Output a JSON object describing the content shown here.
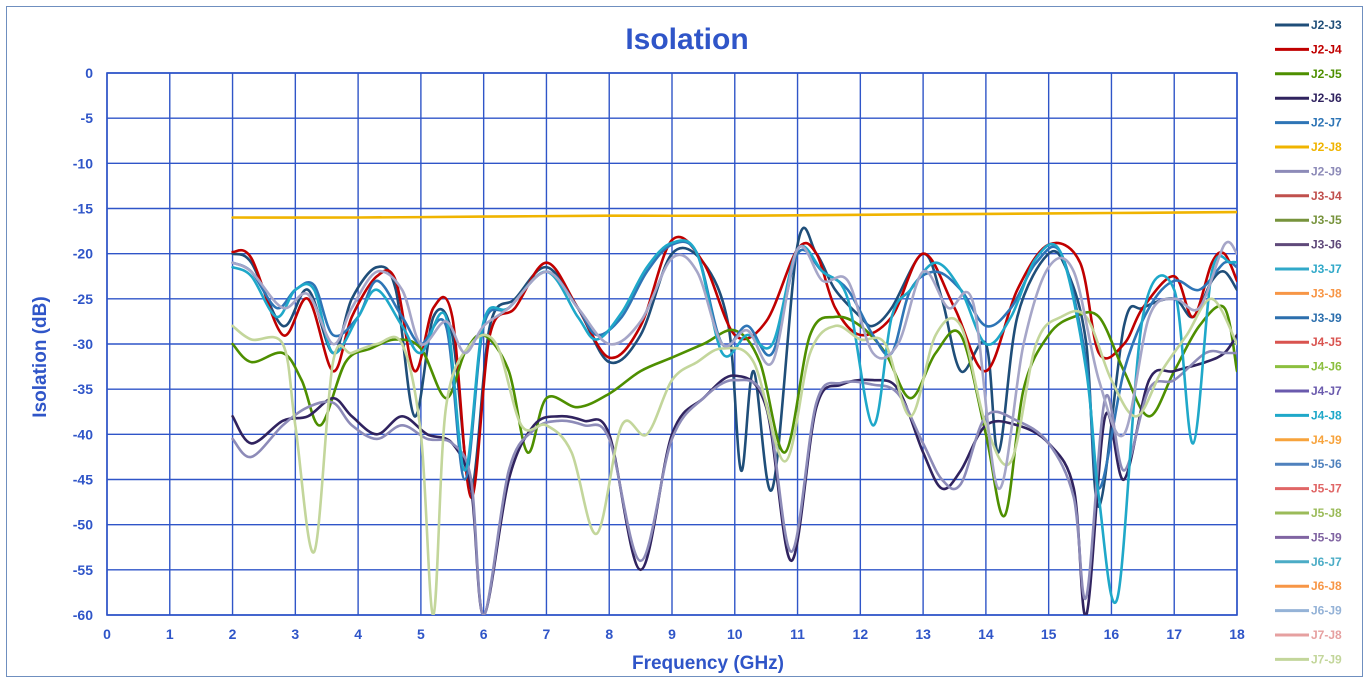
{
  "colors": {
    "title": "#2f55c8",
    "grid": "#2f55c8",
    "axis_text": "#2f55c8",
    "background": "#ffffff"
  },
  "chart_data": {
    "type": "line",
    "title": "Isolation",
    "xlabel": "Frequency (GHz)",
    "ylabel": "Isolation (dB)",
    "xlim": [
      0,
      18
    ],
    "ylim": [
      -60,
      0
    ],
    "x_ticks": [
      "0",
      "1",
      "2",
      "3",
      "4",
      "5",
      "6",
      "7",
      "8",
      "9",
      "10",
      "11",
      "12",
      "13",
      "14",
      "15",
      "16",
      "17",
      "18"
    ],
    "y_ticks": [
      "0",
      "-5",
      "-10",
      "-15",
      "-20",
      "-25",
      "-30",
      "-35",
      "-40",
      "-45",
      "-50",
      "-55",
      "-60"
    ],
    "grid": true,
    "legend_position": "right",
    "series": [
      {
        "name": "J2-J3",
        "color": "#1f4e79",
        "x": [
          2,
          2.3,
          2.8,
          3.2,
          3.6,
          3.9,
          4.3,
          4.6,
          4.9,
          5.2,
          5.5,
          5.8,
          6.1,
          6.5,
          7,
          7.5,
          8,
          8.5,
          9,
          9.5,
          9.9,
          10.1,
          10.3,
          10.6,
          11,
          11.3,
          11.6,
          12,
          12.2,
          12.5,
          13,
          13.3,
          13.6,
          14,
          14.2,
          14.5,
          15,
          15.3,
          15.6,
          15.8,
          16.2,
          16.5,
          17,
          17.3,
          17.6,
          17.8,
          18
        ],
        "y": [
          -20,
          -21,
          -28,
          -24,
          -31,
          -25,
          -21.5,
          -24,
          -38,
          -27,
          -29,
          -46,
          -28,
          -25,
          -21.5,
          -26,
          -32,
          -29,
          -20,
          -21,
          -28,
          -44,
          -33,
          -46,
          -19,
          -20,
          -24,
          -27,
          -28,
          -26,
          -20,
          -25,
          -33,
          -30,
          -42,
          -27,
          -20,
          -22,
          -30,
          -48,
          -28,
          -26,
          -25,
          -27,
          -23,
          -22,
          -24
        ]
      },
      {
        "name": "J2-J4",
        "color": "#c00000",
        "x": [
          2,
          2.3,
          2.8,
          3.2,
          3.6,
          3.9,
          4.3,
          4.6,
          4.9,
          5.2,
          5.5,
          5.8,
          6.1,
          6.5,
          7,
          7.5,
          8,
          8.5,
          9,
          9.5,
          10,
          10.5,
          11,
          11.3,
          11.6,
          12,
          12.5,
          13,
          13.5,
          14,
          14.5,
          15,
          15.5,
          15.8,
          16.2,
          16.5,
          17,
          17.3,
          17.6,
          17.8,
          18
        ],
        "y": [
          -19.8,
          -20.5,
          -29,
          -25,
          -33,
          -27,
          -22.5,
          -23,
          -33,
          -26,
          -27,
          -47,
          -29,
          -26,
          -21,
          -26,
          -31.5,
          -28,
          -18.5,
          -21,
          -29,
          -27.5,
          -19.5,
          -20,
          -26,
          -29,
          -27,
          -20,
          -26,
          -33,
          -24,
          -19,
          -21,
          -31,
          -30,
          -26,
          -22.5,
          -27,
          -21,
          -20,
          -23
        ]
      },
      {
        "name": "J2-J5",
        "color": "#4e8f00",
        "x": [
          2,
          2.3,
          2.8,
          3.1,
          3.4,
          3.8,
          4.2,
          4.6,
          5.0,
          5.4,
          5.7,
          6.0,
          6.4,
          6.7,
          7.0,
          7.5,
          8,
          8.5,
          9,
          9.5,
          10,
          10.4,
          10.8,
          11.2,
          11.6,
          12,
          12.4,
          12.8,
          13.2,
          13.6,
          14,
          14.3,
          14.6,
          15,
          15.4,
          15.8,
          16.2,
          16.6,
          17,
          17.4,
          17.8,
          18
        ],
        "y": [
          -30,
          -32,
          -31,
          -34,
          -39,
          -32,
          -30.5,
          -29.5,
          -30.5,
          -36,
          -31,
          -29,
          -33,
          -42,
          -36,
          -37,
          -35.5,
          -33,
          -31.5,
          -30,
          -28.5,
          -32,
          -42,
          -29,
          -27,
          -28,
          -31,
          -36,
          -31,
          -29,
          -40,
          -49,
          -35,
          -29,
          -27,
          -27,
          -33,
          -38,
          -33,
          -28,
          -26,
          -33
        ]
      },
      {
        "name": "J2-J6",
        "color": "#30235f",
        "x": [
          2,
          2.3,
          2.8,
          3.2,
          3.6,
          3.9,
          4.3,
          4.7,
          5.1,
          5.5,
          5.8,
          6.0,
          6.4,
          6.8,
          7.2,
          7.6,
          8.0,
          8.5,
          9.0,
          9.5,
          10.0,
          10.5,
          10.9,
          11.3,
          11.7,
          12.2,
          12.6,
          13.0,
          13.3,
          13.6,
          14.0,
          14.5,
          15.0,
          15.4,
          15.6,
          15.9,
          16.2,
          16.6,
          17.0,
          17.5,
          17.8,
          18
        ],
        "y": [
          -38,
          -41,
          -38.5,
          -38,
          -36,
          -38,
          -40,
          -38,
          -40,
          -41,
          -46,
          -60,
          -45,
          -39,
          -38,
          -38.5,
          -40,
          -55,
          -40,
          -36,
          -33.5,
          -37,
          -54,
          -37,
          -34.5,
          -34,
          -35,
          -42,
          -46,
          -44,
          -39,
          -39,
          -41,
          -46,
          -60,
          -38,
          -45,
          -34,
          -33,
          -32,
          -31,
          -29
        ]
      },
      {
        "name": "J2-J7",
        "color": "#2e75b6",
        "x": [
          2,
          2.3,
          2.7,
          3.0,
          3.3,
          3.6,
          4.0,
          4.3,
          4.7,
          5.0,
          5.4,
          5.7,
          6.0,
          6.4,
          7.0,
          7.5,
          7.8,
          8.2,
          8.6,
          9.0,
          9.4,
          9.8,
          10.2,
          10.6,
          11.0,
          11.4,
          11.8,
          12.2,
          12.5,
          12.8,
          13.2,
          13.6,
          14.0,
          14.4,
          14.8,
          15.2,
          15.6,
          15.8,
          16.2,
          16.6,
          17.0,
          17.4,
          17.8,
          18
        ],
        "y": [
          -21,
          -22,
          -26,
          -24,
          -23.5,
          -29,
          -27,
          -23,
          -27,
          -30,
          -28,
          -45,
          -28,
          -26,
          -22,
          -26,
          -29,
          -27,
          -22,
          -19,
          -20,
          -30,
          -28,
          -31,
          -20,
          -22,
          -24,
          -29,
          -31,
          -24,
          -22,
          -24,
          -28,
          -26,
          -21,
          -20,
          -32,
          -46,
          -33,
          -26,
          -23,
          -24,
          -21,
          -21.5
        ]
      },
      {
        "name": "J2-J8",
        "color": "#f0b400",
        "x": [
          2,
          4,
          6,
          8,
          10,
          12,
          14,
          16,
          18
        ],
        "y": [
          -16,
          -16,
          -15.9,
          -15.8,
          -15.8,
          -15.7,
          -15.6,
          -15.5,
          -15.4
        ]
      },
      {
        "name": "J2-J9",
        "color": "#8d8bb8",
        "x": [
          2,
          2.3,
          2.8,
          3.2,
          3.6,
          3.9,
          4.3,
          4.7,
          5.1,
          5.5,
          5.8,
          6.0,
          6.4,
          6.8,
          7.2,
          7.6,
          8.0,
          8.5,
          9.0,
          9.5,
          10.0,
          10.5,
          10.9,
          11.3,
          11.7,
          12.2,
          12.6,
          13.0,
          13.3,
          13.6,
          14.0,
          14.5,
          15.0,
          15.4,
          15.6,
          15.9,
          16.2,
          16.6,
          17.0,
          17.5,
          17.8,
          18
        ],
        "y": [
          -40.5,
          -42.5,
          -39,
          -37,
          -36.5,
          -39,
          -40.5,
          -39,
          -40.5,
          -41,
          -45,
          -60,
          -44,
          -39.5,
          -38.5,
          -39,
          -40.5,
          -54,
          -40.5,
          -36,
          -34,
          -36.5,
          -53,
          -36.5,
          -34.3,
          -34.5,
          -35.5,
          -41,
          -45,
          -45.5,
          -38,
          -38.5,
          -41,
          -47,
          -58,
          -36,
          -44,
          -35,
          -34,
          -31,
          -31,
          -31
        ]
      },
      {
        "name": "J3-J4",
        "color": "#c0504d",
        "x": [
          2,
          18
        ],
        "y": [
          -30,
          -30
        ],
        "hidden": true
      },
      {
        "name": "J3-J5",
        "color": "#77933c",
        "x": [
          2,
          18
        ],
        "y": [
          -30,
          -30
        ],
        "hidden": true
      },
      {
        "name": "J3-J6",
        "color": "#5f497a",
        "x": [
          2,
          18
        ],
        "y": [
          -30,
          -30
        ],
        "hidden": true
      },
      {
        "name": "J3-J7",
        "color": "#31a9c9",
        "x": [
          2,
          18
        ],
        "y": [
          -30,
          -30
        ],
        "hidden": true
      },
      {
        "name": "J3-J8",
        "color": "#f79646",
        "x": [
          2,
          18
        ],
        "y": [
          -30,
          -30
        ],
        "hidden": true
      },
      {
        "name": "J3-J9",
        "color": "#2c6fad",
        "x": [
          2,
          18
        ],
        "y": [
          -30,
          -30
        ],
        "hidden": true
      },
      {
        "name": "J4-J5",
        "color": "#d9534f",
        "x": [
          2,
          18
        ],
        "y": [
          -30,
          -30
        ],
        "hidden": true
      },
      {
        "name": "J4-J6",
        "color": "#8cbf3f",
        "x": [
          2,
          18
        ],
        "y": [
          -30,
          -30
        ],
        "hidden": true
      },
      {
        "name": "J4-J7",
        "color": "#6a5aad",
        "x": [
          2,
          18
        ],
        "y": [
          -30,
          -30
        ],
        "hidden": true
      },
      {
        "name": "J4-J8",
        "color": "#1fa8c9",
        "x": [
          2,
          2.3,
          2.7,
          3.0,
          3.3,
          3.6,
          4.0,
          4.3,
          4.7,
          5.0,
          5.4,
          5.7,
          6.0,
          6.4,
          7.0,
          7.5,
          7.8,
          8.2,
          8.6,
          9.0,
          9.4,
          9.8,
          10.2,
          10.6,
          11.0,
          11.4,
          11.8,
          12.2,
          12.5,
          12.8,
          13.2,
          13.6,
          14.0,
          14.4,
          14.8,
          15.2,
          15.6,
          15.8,
          16.1,
          16.5,
          17.0,
          17.3,
          17.6,
          17.9,
          18
        ],
        "y": [
          -21.5,
          -22.5,
          -27,
          -24,
          -24,
          -31,
          -27,
          -24,
          -28,
          -31,
          -27,
          -44,
          -27.5,
          -26,
          -22,
          -27,
          -29.5,
          -26.5,
          -21.5,
          -18.8,
          -20,
          -31,
          -29,
          -30,
          -19.5,
          -22,
          -25,
          -39,
          -27,
          -24,
          -21,
          -24,
          -30,
          -27,
          -20.5,
          -20,
          -33,
          -47,
          -58,
          -27,
          -24,
          -41,
          -22,
          -21,
          -21
        ]
      },
      {
        "name": "J4-J9",
        "color": "#f7a33c",
        "x": [
          2,
          18
        ],
        "y": [
          -30,
          -30
        ],
        "hidden": true
      },
      {
        "name": "J5-J6",
        "color": "#4f81bd",
        "x": [
          2,
          18
        ],
        "y": [
          -30,
          -30
        ],
        "hidden": true
      },
      {
        "name": "J5-J7",
        "color": "#e06666",
        "x": [
          2,
          18
        ],
        "y": [
          -30,
          -30
        ],
        "hidden": true
      },
      {
        "name": "J5-J8",
        "color": "#9bbb59",
        "x": [
          2,
          18
        ],
        "y": [
          -30,
          -30
        ],
        "hidden": true
      },
      {
        "name": "J5-J9",
        "color": "#8064a2",
        "x": [
          2,
          18
        ],
        "y": [
          -30,
          -30
        ],
        "hidden": true
      },
      {
        "name": "J6-J7",
        "color": "#4bacc6",
        "x": [
          2,
          18
        ],
        "y": [
          -30,
          -30
        ],
        "hidden": true
      },
      {
        "name": "J6-J8",
        "color": "#f79646",
        "x": [
          2,
          18
        ],
        "y": [
          -30,
          -30
        ],
        "hidden": true
      },
      {
        "name": "J6-J9",
        "color": "#95b3d7",
        "x": [
          2,
          18
        ],
        "y": [
          -30,
          -30
        ],
        "hidden": true
      },
      {
        "name": "J7-J8",
        "color": "#e6a0a0",
        "x": [
          2,
          18
        ],
        "y": [
          -30,
          -30
        ],
        "hidden": true
      },
      {
        "name": "J7-J9",
        "color": "#c3d69b",
        "x": [
          2,
          2.3,
          2.8,
          3.0,
          3.3,
          3.6,
          3.9,
          4.3,
          4.7,
          5.0,
          5.2,
          5.4,
          5.8,
          6.2,
          6.6,
          7.0,
          7.4,
          7.8,
          8.2,
          8.6,
          9.0,
          9.4,
          9.8,
          10.3,
          10.8,
          11.2,
          11.6,
          12.0,
          12.4,
          12.8,
          13.2,
          13.6,
          14.0,
          14.4,
          14.8,
          15.2,
          15.6,
          16.0,
          16.4,
          16.8,
          17.2,
          17.6,
          18
        ],
        "y": [
          -28,
          -29.5,
          -30,
          -39,
          -53,
          -32,
          -31,
          -30,
          -30,
          -40,
          -60,
          -37,
          -30,
          -30,
          -39,
          -39,
          -42,
          -51,
          -39,
          -40,
          -34,
          -32,
          -30.5,
          -32,
          -43,
          -31,
          -28,
          -29.5,
          -30,
          -38,
          -29,
          -28,
          -39,
          -43,
          -30,
          -27,
          -27,
          -34,
          -38,
          -33,
          -29,
          -25,
          -30
        ]
      },
      {
        "name": "J8-J9",
        "color": "#a6a6c8",
        "x": [
          2,
          2.3,
          2.8,
          3.2,
          3.6,
          3.9,
          4.3,
          4.7,
          5.0,
          5.4,
          5.7,
          6.0,
          6.4,
          7.0,
          7.5,
          8.0,
          8.5,
          9.0,
          9.4,
          9.8,
          10.2,
          10.6,
          11.0,
          11.4,
          11.8,
          12.2,
          12.6,
          13.0,
          13.4,
          13.8,
          14.2,
          14.6,
          15.0,
          15.4,
          15.8,
          16.2,
          16.6,
          17.0,
          17.4,
          17.8,
          18
        ],
        "y": [
          -21,
          -22,
          -26,
          -24.5,
          -30,
          -26,
          -22,
          -24,
          -30,
          -27.5,
          -31,
          -28,
          -26,
          -22,
          -26,
          -30,
          -27.5,
          -20.5,
          -22,
          -30,
          -28.5,
          -32,
          -19.5,
          -23,
          -23,
          -31,
          -30,
          -22,
          -26,
          -25.5,
          -46,
          -30,
          -21.5,
          -22,
          -34,
          -40,
          -27,
          -25,
          -26,
          -19,
          -20
        ]
      }
    ]
  }
}
